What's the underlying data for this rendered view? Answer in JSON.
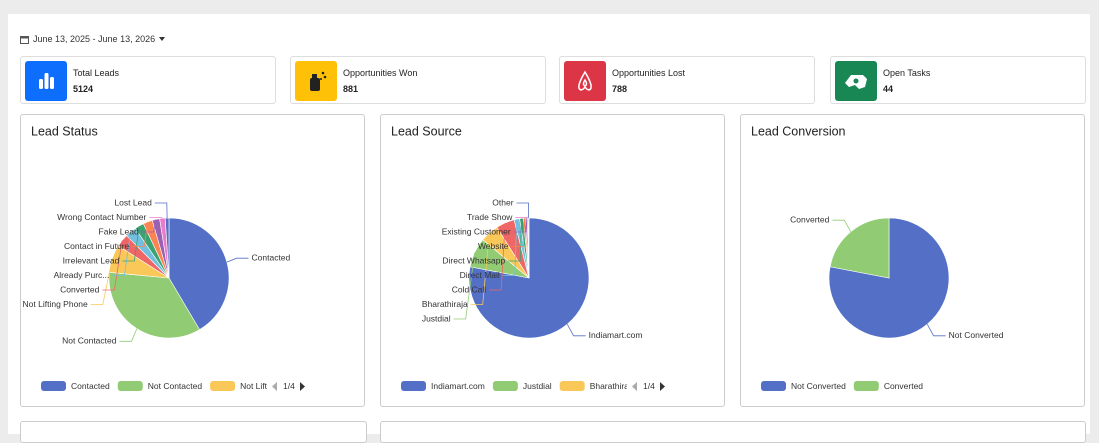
{
  "date_range": "June 13, 2025 - June 13, 2026",
  "stats": [
    {
      "label": "Total Leads",
      "value": 5124
    },
    {
      "label": "Opportunities Won",
      "value": 881
    },
    {
      "label": "Opportunities Lost",
      "value": 788
    },
    {
      "label": "Open Tasks",
      "value": 44
    }
  ],
  "chart_data": [
    {
      "type": "pie",
      "title": "Lead Status",
      "categories": [
        "Contacted",
        "Not Contacted",
        "Not Lifting Phone",
        "Converted",
        "Already Purc...",
        "Irrelevant Lead",
        "Contact in Future",
        "Fake Lead",
        "Wrong Contact Number",
        "Lost Lead"
      ],
      "values": [
        41.5,
        35,
        7.5,
        3.5,
        3,
        2.5,
        2.5,
        2,
        1.5,
        1
      ],
      "colors": [
        "#5470c6",
        "#91cc75",
        "#fac858",
        "#ee6666",
        "#73c0de",
        "#3ba272",
        "#fc8452",
        "#9a60b4",
        "#ea7ccc",
        "#5470c6"
      ],
      "legend_page": "1/4"
    },
    {
      "type": "pie",
      "title": "Lead Source",
      "categories": [
        "Indiamart.com",
        "Justdial",
        "Bharathiraja",
        "Cold Call",
        "Direct Mail",
        "Direct Whatsapp",
        "Website",
        "Existing Customer",
        "Trade Show",
        "Other"
      ],
      "values": [
        78,
        8,
        5,
        5,
        1.5,
        1,
        0.5,
        0.5,
        0.3,
        0.2
      ],
      "colors": [
        "#5470c6",
        "#91cc75",
        "#fac858",
        "#ee6666",
        "#73c0de",
        "#3ba272",
        "#fc8452",
        "#9a60b4",
        "#ea7ccc",
        "#5470c6"
      ],
      "legend_page": "1/4"
    },
    {
      "type": "pie",
      "title": "Lead Conversion",
      "categories": [
        "Not Converted",
        "Converted"
      ],
      "values": [
        78,
        22
      ],
      "colors": [
        "#5470c6",
        "#91cc75"
      ]
    }
  ]
}
